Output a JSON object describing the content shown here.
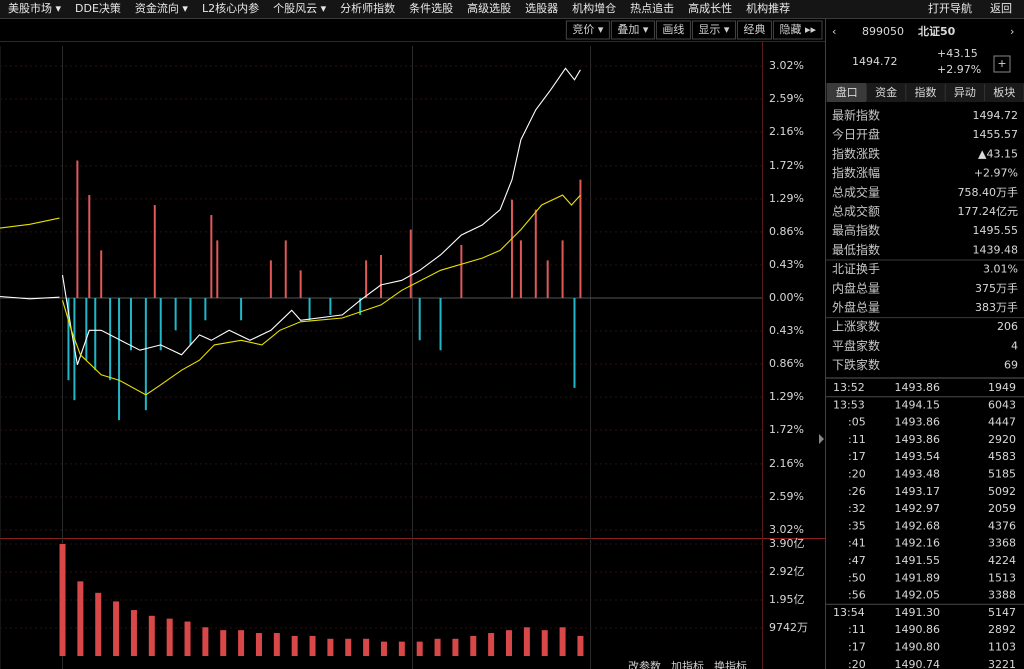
{
  "menu": [
    "美股市场 ▾",
    "DDE决策",
    "资金流向 ▾",
    "L2核心内参",
    "个股风云 ▾",
    "分析师指数",
    "条件选股",
    "高级选股",
    "选股器",
    "机构增仓",
    "热点追击",
    "高成长性",
    "机构推荐"
  ],
  "menu_right": [
    "打开导航",
    "返回"
  ],
  "toolbar": [
    "竞价 ▾",
    "叠加 ▾",
    "画线",
    "显示 ▾",
    "经典",
    "隐藏 ▸▸"
  ],
  "bottom_toolbar": [
    "改参数",
    "加指标",
    "换指标"
  ],
  "chart": {
    "type": "line",
    "xlim": [
      -21,
      235
    ],
    "ylim": [
      -3.02,
      3.02
    ],
    "yticks": [
      {
        "value": 3.02,
        "label": "3.02%"
      },
      {
        "value": 2.59,
        "label": "2.59%"
      },
      {
        "value": 2.16,
        "label": "2.16%"
      },
      {
        "value": 1.72,
        "label": "1.72%"
      },
      {
        "value": 1.29,
        "label": "1.29%"
      },
      {
        "value": 0.86,
        "label": "0.86%"
      },
      {
        "value": 0.43,
        "label": "0.43%"
      },
      {
        "value": 0,
        "label": "0.00%"
      },
      {
        "value": -0.43,
        "label": "0.43%"
      },
      {
        "value": -0.86,
        "label": "0.86%"
      },
      {
        "value": -1.29,
        "label": "1.29%"
      },
      {
        "value": -1.72,
        "label": "1.72%"
      },
      {
        "value": -2.16,
        "label": "2.16%"
      },
      {
        "value": -2.59,
        "label": "2.59%"
      },
      {
        "value": -3.02,
        "label": "3.02%"
      }
    ],
    "tick_colors": {
      "up": "#ff4848",
      "zero": "#d8d8d8",
      "down": "#30c8c8"
    },
    "series": [
      {
        "color": "#ffffff",
        "x": [
          -21,
          -11,
          -1,
          -0.5,
          0,
          3,
          5,
          9,
          13,
          26,
          33,
          40,
          46,
          50,
          56,
          63,
          70,
          77,
          80,
          94,
          100,
          107,
          114,
          120,
          127,
          134,
          141,
          147,
          151,
          154,
          159,
          164,
          169,
          172,
          174
        ],
        "values": [
          0.02,
          -0.01,
          0.01,
          null,
          0.3,
          -0.42,
          -0.87,
          -0.42,
          -0.42,
          -0.68,
          -0.61,
          -0.74,
          -0.48,
          -0.55,
          -0.42,
          -0.55,
          -0.42,
          -0.16,
          -0.29,
          -0.22,
          -0.03,
          0.17,
          0.23,
          0.36,
          0.56,
          0.82,
          0.95,
          1.15,
          1.54,
          2.06,
          2.45,
          2.71,
          2.99,
          2.84,
          2.97
        ]
      },
      {
        "color": "#e8e000",
        "x": [
          -21,
          -11,
          -1,
          -0.5,
          0,
          3,
          6,
          13,
          19,
          28,
          33,
          40,
          46,
          51,
          60,
          67,
          73,
          80,
          94,
          107,
          114,
          127,
          141,
          147,
          154,
          161,
          168,
          171,
          174
        ],
        "values": [
          0.91,
          0.96,
          1.04,
          null,
          -0.03,
          -0.42,
          -0.74,
          -1.0,
          -1.07,
          -1.26,
          -1.13,
          -0.94,
          -0.81,
          -0.61,
          -0.55,
          -0.61,
          -0.42,
          -0.31,
          -0.26,
          -0.09,
          0.1,
          0.36,
          0.52,
          0.62,
          0.89,
          1.21,
          1.34,
          1.21,
          1.34
        ]
      }
    ],
    "bars": {
      "colors": {
        "up": "#e05858",
        "down": "#20b8c8"
      },
      "x": [
        2,
        4,
        5,
        8,
        9,
        11,
        13,
        16,
        19,
        23,
        28,
        31,
        33,
        38,
        43,
        48,
        50,
        52,
        60,
        70,
        75,
        80,
        83,
        90,
        100,
        102,
        107,
        117,
        120,
        127,
        134,
        151,
        154,
        159,
        163,
        168,
        172,
        174
      ],
      "values": [
        -1.07,
        -1.33,
        1.79,
        -0.81,
        1.34,
        -0.94,
        0.62,
        -1.07,
        -1.59,
        -0.68,
        -1.46,
        1.21,
        -0.68,
        -0.42,
        -0.61,
        -0.29,
        1.08,
        0.75,
        -0.29,
        0.49,
        0.75,
        0.36,
        -0.29,
        -0.22,
        -0.22,
        0.49,
        0.56,
        0.89,
        -0.55,
        -0.68,
        0.69,
        1.28,
        0.75,
        1.15,
        0.49,
        0.75,
        -1.17,
        1.54
      ]
    }
  },
  "volume": {
    "type": "bar",
    "color": "#d84848",
    "tick_color": "#c8c8c8",
    "ylim": [
      0,
      3.9
    ],
    "yticks": [
      {
        "value": 3.9,
        "label": "3.90亿"
      },
      {
        "value": 2.92,
        "label": "2.92亿"
      },
      {
        "value": 1.95,
        "label": "1.95亿"
      },
      {
        "value": 0.9742,
        "label": "9742万"
      }
    ],
    "x": [
      0,
      6,
      12,
      18,
      24,
      30,
      36,
      42,
      48,
      54,
      60,
      66,
      72,
      78,
      84,
      90,
      96,
      102,
      108,
      114,
      120,
      126,
      132,
      138,
      144,
      150,
      156,
      162,
      168,
      174
    ],
    "values": [
      3.9,
      2.6,
      2.2,
      1.9,
      1.6,
      1.4,
      1.3,
      1.2,
      1.0,
      0.9,
      0.9,
      0.8,
      0.8,
      0.7,
      0.7,
      0.6,
      0.6,
      0.6,
      0.5,
      0.5,
      0.5,
      0.6,
      0.6,
      0.7,
      0.8,
      0.9,
      1.0,
      0.9,
      1.0,
      0.7
    ]
  },
  "quote": {
    "code": "899050",
    "name": "北证50",
    "price": "1494.72",
    "change": "+43.15",
    "change_pct": "+2.97%",
    "add": "+"
  },
  "tabs": [
    "盘口",
    "资金",
    "指数",
    "异动",
    "板块"
  ],
  "stats": [
    {
      "label": "最新指数",
      "value": "1494.72",
      "color": "#ff5050"
    },
    {
      "label": "今日开盘",
      "value": "1455.57",
      "color": "#ff5050"
    },
    {
      "label": "指数涨跌",
      "value": "▲43.15",
      "color": "#ff5050"
    },
    {
      "label": "指数涨幅",
      "value": "+2.97%",
      "color": "#ff5050"
    },
    {
      "label": "总成交量",
      "value": "758.40万手",
      "color": "#f0f0f0"
    },
    {
      "label": "总成交额",
      "value": "177.24亿元",
      "color": "#30d0f0"
    },
    {
      "label": "最高指数",
      "value": "1495.55",
      "color": "#ff5050"
    },
    {
      "label": "最低指数",
      "value": "1439.48",
      "color": "#ff5050"
    },
    {
      "label": "北证换手",
      "value": "3.01%",
      "color": "#f0f0f0"
    },
    {
      "label": "内盘总量",
      "value": "375万手",
      "color": "#ff5050"
    },
    {
      "label": "外盘总量",
      "value": "383万手",
      "color": "#ff5050"
    },
    {
      "label": "上涨家数",
      "value": "206",
      "color": "#ff5050"
    },
    {
      "label": "平盘家数",
      "value": "4",
      "color": "#f0f0f0"
    },
    {
      "label": "下跌家数",
      "value": "69",
      "color": "#30e030"
    }
  ],
  "trades": [
    {
      "time": "13:52",
      "price": "1493.86",
      "volume": "1949",
      "color": "#f0e040"
    },
    {
      "time": "13:53",
      "price": "1494.15",
      "volume": "6043",
      "color": "#f0f0f0"
    },
    {
      "time": ":05",
      "price": "1493.86",
      "volume": "4447",
      "color": "#30e030"
    },
    {
      "time": ":11",
      "price": "1493.86",
      "volume": "2920",
      "color": "#30e030"
    },
    {
      "time": ":17",
      "price": "1493.54",
      "volume": "4583",
      "color": "#30e030"
    },
    {
      "time": ":20",
      "price": "1493.48",
      "volume": "5185",
      "color": "#30e030"
    },
    {
      "time": ":26",
      "price": "1493.17",
      "volume": "5092",
      "color": "#30e030"
    },
    {
      "time": ":32",
      "price": "1492.97",
      "volume": "2059",
      "color": "#30e030"
    },
    {
      "time": ":35",
      "price": "1492.68",
      "volume": "4376",
      "color": "#30e030"
    },
    {
      "time": ":41",
      "price": "1492.16",
      "volume": "3368",
      "color": "#30e030"
    },
    {
      "time": ":47",
      "price": "1491.55",
      "volume": "4224",
      "color": "#30e030"
    },
    {
      "time": ":50",
      "price": "1491.89",
      "volume": "1513",
      "color": "#ff5050"
    },
    {
      "time": ":56",
      "price": "1492.05",
      "volume": "3388",
      "color": "#ff5050"
    },
    {
      "time": "13:54",
      "price": "1491.30",
      "volume": "5147",
      "color": "#30e030"
    },
    {
      "time": ":11",
      "price": "1490.86",
      "volume": "2892",
      "color": "#30e030"
    },
    {
      "time": ":17",
      "price": "1490.80",
      "volume": "1103",
      "color": "#30e030"
    },
    {
      "time": ":20",
      "price": "1490.74",
      "volume": "3221",
      "color": "#30e030"
    }
  ]
}
